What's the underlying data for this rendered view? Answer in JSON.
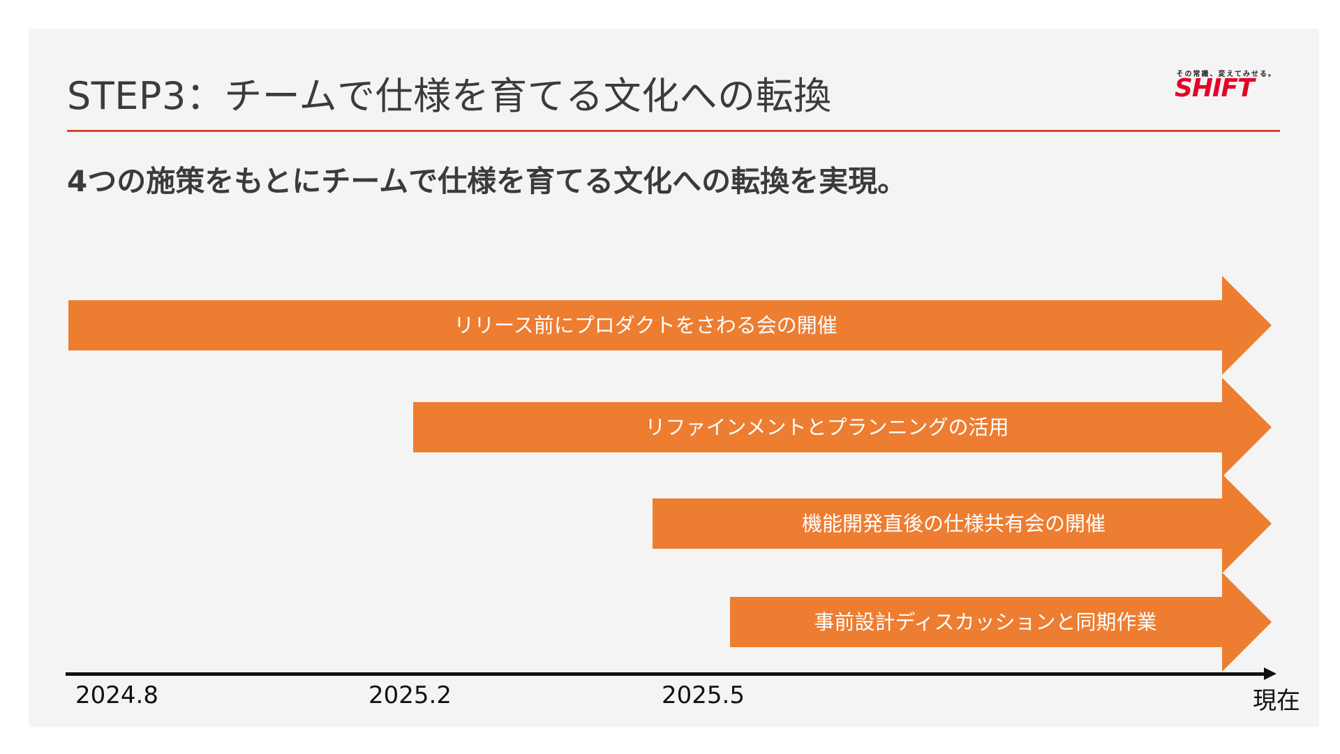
{
  "slide": {
    "title": "STEP3：チームで仕様を育てる文化への転換",
    "subtitle": "4つの施策をもとにチームで仕様を育てる文化への転換を実現。",
    "accent_color": "#d9472b",
    "arrow_color": "#ed7d31"
  },
  "logo": {
    "tagline": "その常識、変えてみせる。",
    "wordmark": "SHIFT",
    "color": "#e60026"
  },
  "timeline": {
    "initiatives": [
      {
        "label": "リリース前にプロダクトをさわる会の開催",
        "start": "2024.8"
      },
      {
        "label": "リファインメントとプランニングの活用",
        "start": "2025.2"
      },
      {
        "label": "機能開発直後の仕様共有会の開催",
        "start": "2025.5"
      },
      {
        "label": "事前設計ディスカッションと同期作業",
        "start": ""
      }
    ],
    "axis_labels": [
      "2024.8",
      "2025.2",
      "2025.5",
      "現在"
    ]
  }
}
